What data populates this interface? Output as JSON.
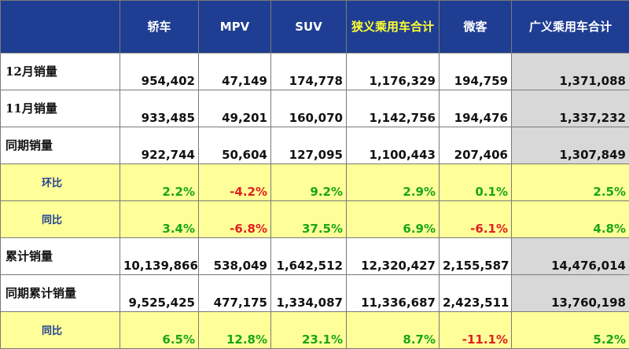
{
  "table": {
    "headers": [
      "",
      "轿车",
      "MPV",
      "SUV",
      "狭义乘用车合计",
      "微客",
      "广义乘用车合计"
    ],
    "rows": [
      {
        "label": "12月销量",
        "cells": [
          "954,402",
          "47,149",
          "174,778",
          "1,176,329",
          "194,759",
          "1,371,088"
        ]
      },
      {
        "label": "11月销量",
        "cells": [
          "933,485",
          "49,201",
          "160,070",
          "1,142,756",
          "194,476",
          "1,337,232"
        ]
      },
      {
        "label": "同期销量",
        "cells": [
          "922,744",
          "50,604",
          "127,095",
          "1,100,443",
          "207,406",
          "1,307,849"
        ]
      },
      {
        "label": "环比",
        "cells": [
          "2.2%",
          "-4.2%",
          "9.2%",
          "2.9%",
          "0.1%",
          "2.5%"
        ]
      },
      {
        "label": "同比",
        "cells": [
          "3.4%",
          "-6.8%",
          "37.5%",
          "6.9%",
          "-6.1%",
          "4.8%"
        ]
      },
      {
        "label": "累计销量",
        "cells": [
          "10,139,866",
          "538,049",
          "1,642,512",
          "12,320,427",
          "2,155,587",
          "14,476,014"
        ]
      },
      {
        "label": "同期累计销量",
        "cells": [
          "9,525,425",
          "477,175",
          "1,334,087",
          "11,336,687",
          "2,423,511",
          "13,760,198"
        ]
      },
      {
        "label": "同比",
        "cells": [
          "6.5%",
          "12.8%",
          "23.1%",
          "8.7%",
          "-11.1%",
          "5.2%"
        ]
      }
    ]
  },
  "colors": {
    "header_bg": "#1f3e93",
    "header_text": "#ffffff",
    "header_highlight_text": "#ffff33",
    "percent_row_bg": "#ffff99",
    "total_column_bg": "#d8d8d8",
    "positive": "#19a619",
    "negative": "#e02020"
  }
}
